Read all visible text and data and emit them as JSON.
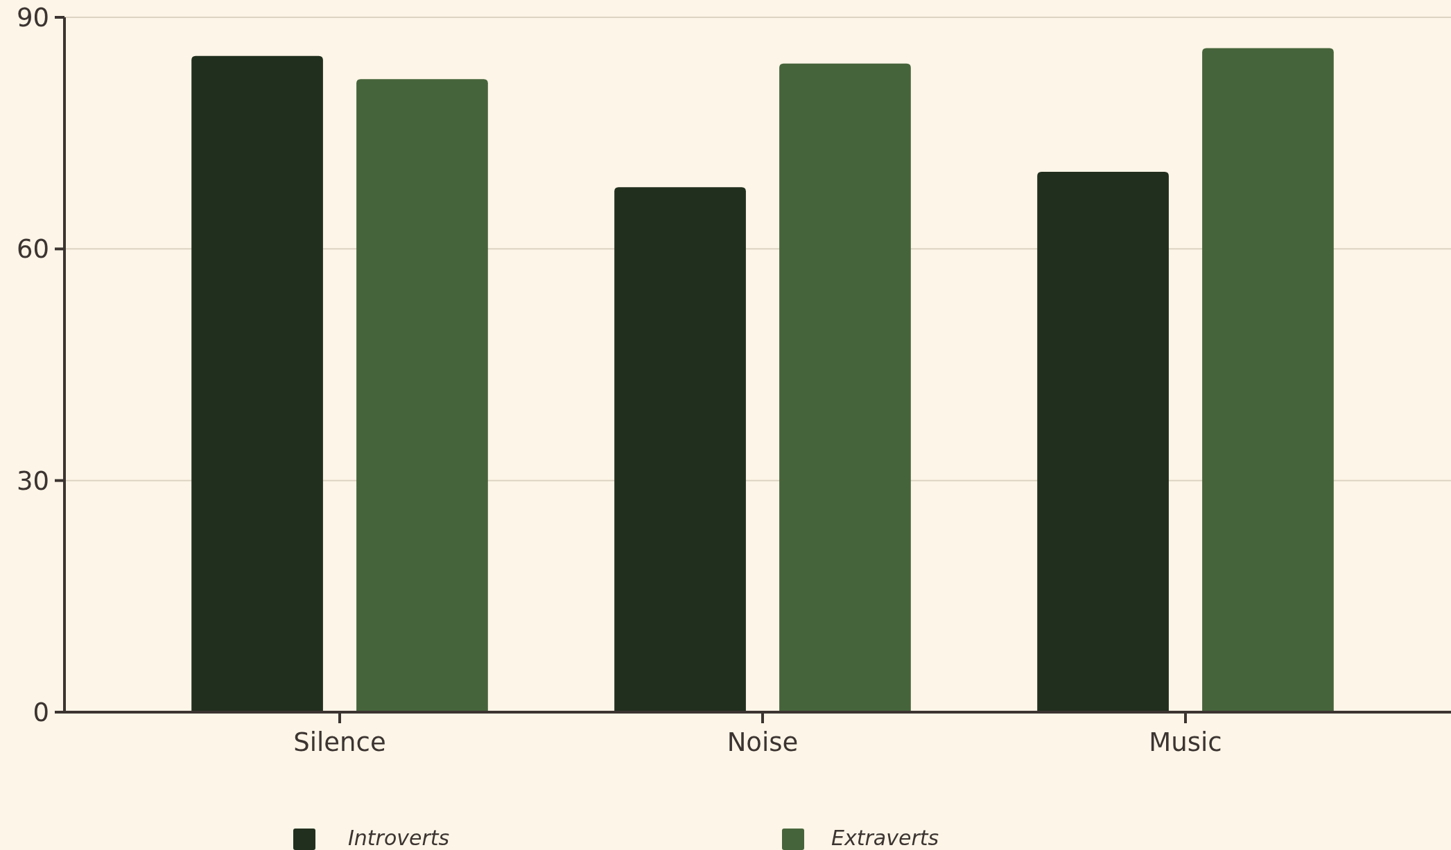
{
  "chart_data": {
    "type": "bar",
    "categories": [
      "Silence",
      "Noise",
      "Music"
    ],
    "series": [
      {
        "name": "Introverts",
        "color": "#212f1e",
        "values": [
          85,
          68,
          70
        ]
      },
      {
        "name": "Extraverts",
        "color": "#46643b",
        "values": [
          82,
          84,
          86
        ]
      }
    ],
    "ylim": [
      0,
      90
    ],
    "yticks": [
      0,
      30,
      60,
      90
    ],
    "grid": "y",
    "legend": "bottom"
  }
}
